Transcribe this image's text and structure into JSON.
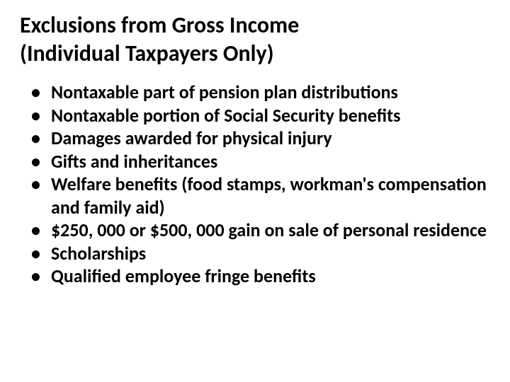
{
  "title_line1": "Exclusions from Gross Income",
  "title_line2": "(Individual Taxpayers Only)",
  "bullets": {
    "item0": "Nontaxable part of pension plan distributions",
    "item1": "Nontaxable portion of Social Security benefits",
    "item2": "Damages awarded for physical injury",
    "item3": "Gifts and inheritances",
    "item4": "Welfare benefits (food stamps, workman's compensation and family aid)",
    "item5": "$250, 000 or $500, 000 gain on sale of personal residence",
    "item6": "Scholarships",
    "item7": "Qualified employee fringe benefits"
  },
  "styling": {
    "background_color": "#ffffff",
    "text_color": "#000000",
    "title_fontsize": 32,
    "bullet_fontsize": 26,
    "font_family": "Calibri",
    "font_weight": "bold"
  }
}
